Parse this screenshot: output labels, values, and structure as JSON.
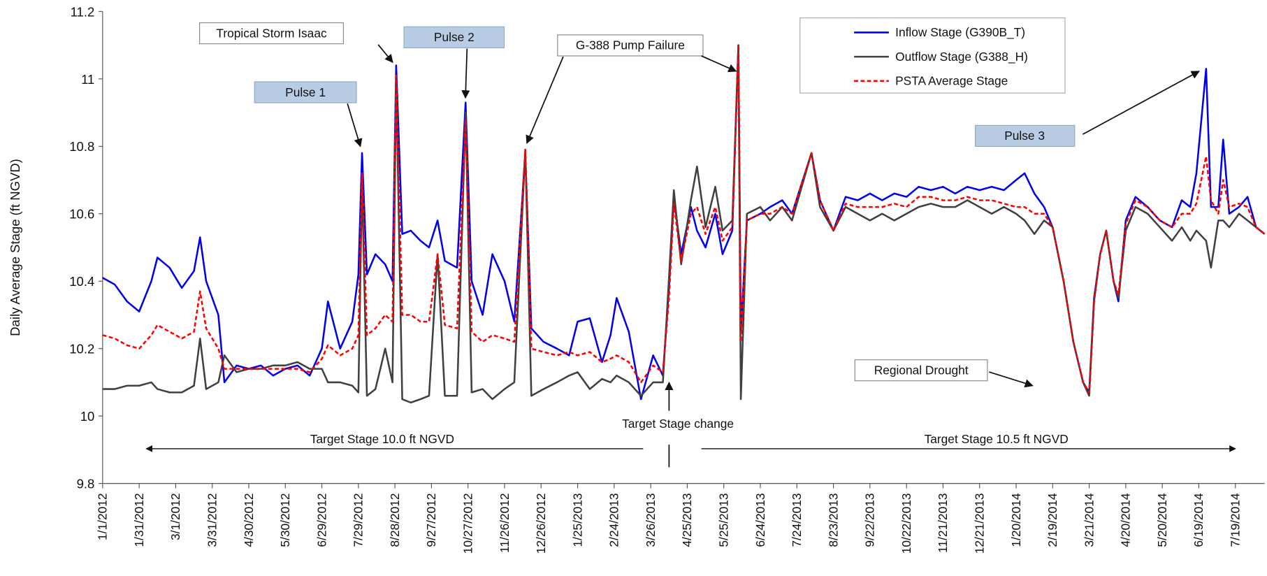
{
  "chart_data": {
    "type": "line",
    "y_label": "Daily Average Stage (ft NGVD)",
    "ylim": [
      9.8,
      11.2
    ],
    "yticks": [
      9.8,
      10,
      10.2,
      10.4,
      10.6,
      10.8,
      11,
      11.2
    ],
    "xlim": [
      "1/1/2012",
      "8/12/2014"
    ],
    "xticks": [
      "1/1/2012",
      "1/31/2012",
      "3/1/2012",
      "3/31/2012",
      "4/30/2012",
      "5/30/2012",
      "6/29/2012",
      "7/29/2012",
      "8/28/2012",
      "9/27/2012",
      "10/27/2012",
      "11/26/2012",
      "12/26/2012",
      "1/25/2013",
      "2/24/2013",
      "3/26/2013",
      "4/25/2013",
      "5/25/2013",
      "6/24/2013",
      "7/24/2013",
      "8/23/2013",
      "9/22/2013",
      "10/22/2013",
      "11/21/2013",
      "12/21/2013",
      "1/20/2014",
      "2/19/2014",
      "3/21/2014",
      "4/20/2014",
      "5/20/2014",
      "6/19/2014",
      "7/19/2014"
    ],
    "grid": false,
    "legend": "upper right",
    "x": [
      "1/1/2012",
      "1/11/2012",
      "1/21/2012",
      "1/31/2012",
      "2/10/2012",
      "2/15/2012",
      "2/25/2012",
      "3/6/2012",
      "3/16/2012",
      "3/21/2012",
      "3/26/2012",
      "4/5/2012",
      "4/10/2012",
      "4/20/2012",
      "4/30/2012",
      "5/10/2012",
      "5/20/2012",
      "5/30/2012",
      "6/9/2012",
      "6/19/2012",
      "6/29/2012",
      "7/4/2012",
      "7/14/2012",
      "7/24/2012",
      "7/29/2012",
      "8/1/2012",
      "8/5/2012",
      "8/12/2012",
      "8/20/2012",
      "8/26/2012",
      "8/29/2012",
      "9/3/2012",
      "9/10/2012",
      "9/18/2012",
      "9/25/2012",
      "10/2/2012",
      "10/8/2012",
      "10/18/2012",
      "10/25/2012",
      "10/30/2012",
      "11/8/2012",
      "11/16/2012",
      "11/26/2012",
      "12/4/2012",
      "12/13/2012",
      "12/18/2012",
      "12/28/2012",
      "1/8/2013",
      "1/18/2013",
      "1/25/2013",
      "2/4/2013",
      "2/14/2013",
      "2/21/2013",
      "2/26/2013",
      "3/8/2013",
      "3/18/2013",
      "3/28/2013",
      "4/5/2013",
      "4/10/2013",
      "4/14/2013",
      "4/20/2013",
      "4/28/2013",
      "5/3/2013",
      "5/10/2013",
      "5/18/2013",
      "5/24/2013",
      "6/1/2013",
      "6/6/2013",
      "6/8/2013",
      "6/13/2013",
      "6/24/2013",
      "7/2/2013",
      "7/12/2013",
      "7/20/2013",
      "8/5/2013",
      "8/12/2013",
      "8/23/2013",
      "9/2/2013",
      "9/12/2013",
      "9/22/2013",
      "10/2/2013",
      "10/12/2013",
      "10/22/2013",
      "11/1/2013",
      "11/11/2013",
      "11/21/2013",
      "12/1/2013",
      "12/11/2013",
      "12/21/2013",
      "12/31/2013",
      "1/10/2014",
      "1/20/2014",
      "1/27/2014",
      "2/4/2014",
      "2/12/2014",
      "2/19/2014",
      "2/28/2014",
      "3/8/2014",
      "3/16/2014",
      "3/21/2014",
      "3/25/2014",
      "3/30/2014",
      "4/4/2014",
      "4/10/2014",
      "4/14/2014",
      "4/20/2014",
      "4/28/2014",
      "5/8/2014",
      "5/18/2014",
      "5/28/2014",
      "6/5/2014",
      "6/12/2014",
      "6/17/2014",
      "6/25/2014",
      "6/29/2014",
      "7/5/2014",
      "7/9/2014",
      "7/14/2014",
      "7/22/2014",
      "7/29/2014",
      "8/5/2014",
      "8/12/2014"
    ],
    "series": [
      {
        "name": "Inflow Stage (G390B_T)",
        "color": "#0000ee",
        "dash": false,
        "values": [
          10.41,
          10.39,
          10.34,
          10.31,
          10.4,
          10.47,
          10.44,
          10.38,
          10.43,
          10.53,
          10.4,
          10.3,
          10.1,
          10.15,
          10.14,
          10.15,
          10.12,
          10.14,
          10.15,
          10.12,
          10.2,
          10.34,
          10.2,
          10.28,
          10.42,
          10.78,
          10.42,
          10.48,
          10.45,
          10.4,
          11.04,
          10.54,
          10.55,
          10.52,
          10.5,
          10.58,
          10.46,
          10.44,
          10.93,
          10.4,
          10.3,
          10.48,
          10.4,
          10.28,
          10.78,
          10.26,
          10.22,
          10.2,
          10.18,
          10.28,
          10.29,
          10.16,
          10.24,
          10.35,
          10.25,
          10.05,
          10.18,
          10.12,
          10.38,
          10.65,
          10.48,
          10.62,
          10.55,
          10.5,
          10.6,
          10.48,
          10.55,
          11.1,
          10.25,
          10.58,
          10.6,
          10.62,
          10.64,
          10.6,
          10.78,
          10.64,
          10.55,
          10.65,
          10.64,
          10.66,
          10.64,
          10.66,
          10.65,
          10.68,
          10.67,
          10.68,
          10.66,
          10.68,
          10.67,
          10.68,
          10.67,
          10.7,
          10.72,
          10.66,
          10.62,
          10.56,
          10.4,
          10.22,
          10.1,
          10.07,
          10.35,
          10.48,
          10.55,
          10.4,
          10.34,
          10.58,
          10.65,
          10.62,
          10.58,
          10.56,
          10.64,
          10.62,
          10.72,
          11.03,
          10.62,
          10.62,
          10.82,
          10.6,
          10.62,
          10.65,
          10.56,
          10.54
        ]
      },
      {
        "name": "Outflow Stage (G388_H)",
        "color": "#404040",
        "dash": false,
        "values": [
          10.08,
          10.08,
          10.09,
          10.09,
          10.1,
          10.08,
          10.07,
          10.07,
          10.09,
          10.23,
          10.08,
          10.1,
          10.18,
          10.13,
          10.14,
          10.14,
          10.15,
          10.15,
          10.16,
          10.14,
          10.14,
          10.1,
          10.1,
          10.09,
          10.07,
          10.7,
          10.06,
          10.08,
          10.2,
          10.1,
          11.0,
          10.05,
          10.04,
          10.05,
          10.06,
          10.48,
          10.06,
          10.06,
          10.9,
          10.07,
          10.08,
          10.05,
          10.08,
          10.1,
          10.79,
          10.06,
          10.08,
          10.1,
          10.12,
          10.13,
          10.08,
          10.11,
          10.1,
          10.12,
          10.1,
          10.06,
          10.1,
          10.1,
          10.41,
          10.67,
          10.45,
          10.64,
          10.74,
          10.56,
          10.68,
          10.55,
          10.58,
          11.1,
          10.05,
          10.6,
          10.62,
          10.58,
          10.62,
          10.58,
          10.78,
          10.62,
          10.55,
          10.62,
          10.6,
          10.58,
          10.6,
          10.58,
          10.6,
          10.62,
          10.63,
          10.62,
          10.62,
          10.64,
          10.62,
          10.6,
          10.62,
          10.6,
          10.58,
          10.54,
          10.58,
          10.56,
          10.4,
          10.22,
          10.1,
          10.06,
          10.34,
          10.48,
          10.55,
          10.4,
          10.35,
          10.55,
          10.62,
          10.6,
          10.56,
          10.52,
          10.56,
          10.52,
          10.55,
          10.52,
          10.44,
          10.58,
          10.58,
          10.56,
          10.6,
          10.58,
          10.56,
          10.54
        ]
      },
      {
        "name": "PSTA Average Stage",
        "color": "#ff0000",
        "dash": true,
        "values": [
          10.24,
          10.23,
          10.21,
          10.2,
          10.24,
          10.27,
          10.25,
          10.23,
          10.25,
          10.37,
          10.26,
          10.2,
          10.14,
          10.14,
          10.14,
          10.14,
          10.14,
          10.14,
          10.14,
          10.13,
          10.17,
          10.21,
          10.18,
          10.2,
          10.24,
          10.72,
          10.24,
          10.26,
          10.3,
          10.28,
          11.01,
          10.3,
          10.3,
          10.28,
          10.28,
          10.48,
          10.27,
          10.26,
          10.88,
          10.25,
          10.22,
          10.24,
          10.23,
          10.22,
          10.79,
          10.2,
          10.19,
          10.18,
          10.19,
          10.18,
          10.19,
          10.16,
          10.17,
          10.18,
          10.16,
          10.1,
          10.15,
          10.13,
          10.35,
          10.63,
          10.46,
          10.6,
          10.62,
          10.54,
          10.62,
          10.52,
          10.56,
          11.1,
          10.22,
          10.58,
          10.6,
          10.6,
          10.62,
          10.6,
          10.78,
          10.64,
          10.55,
          10.63,
          10.62,
          10.62,
          10.62,
          10.63,
          10.62,
          10.65,
          10.65,
          10.64,
          10.64,
          10.65,
          10.64,
          10.64,
          10.63,
          10.62,
          10.62,
          10.6,
          10.6,
          10.56,
          10.4,
          10.22,
          10.1,
          10.07,
          10.34,
          10.48,
          10.55,
          10.4,
          10.36,
          10.57,
          10.64,
          10.62,
          10.58,
          10.56,
          10.6,
          10.6,
          10.63,
          10.77,
          10.64,
          10.6,
          10.7,
          10.62,
          10.63,
          10.62,
          10.56,
          10.54
        ]
      }
    ],
    "annotations": [
      "Tropical Storm Isaac",
      "Pulse 2",
      "Pulse 1",
      "G-388 Pump Failure",
      "Pulse 3",
      "Regional Drought",
      "Target Stage change",
      "Target Stage 10.0 ft NGVD",
      "Target Stage 10.5 ft NGVD"
    ]
  }
}
